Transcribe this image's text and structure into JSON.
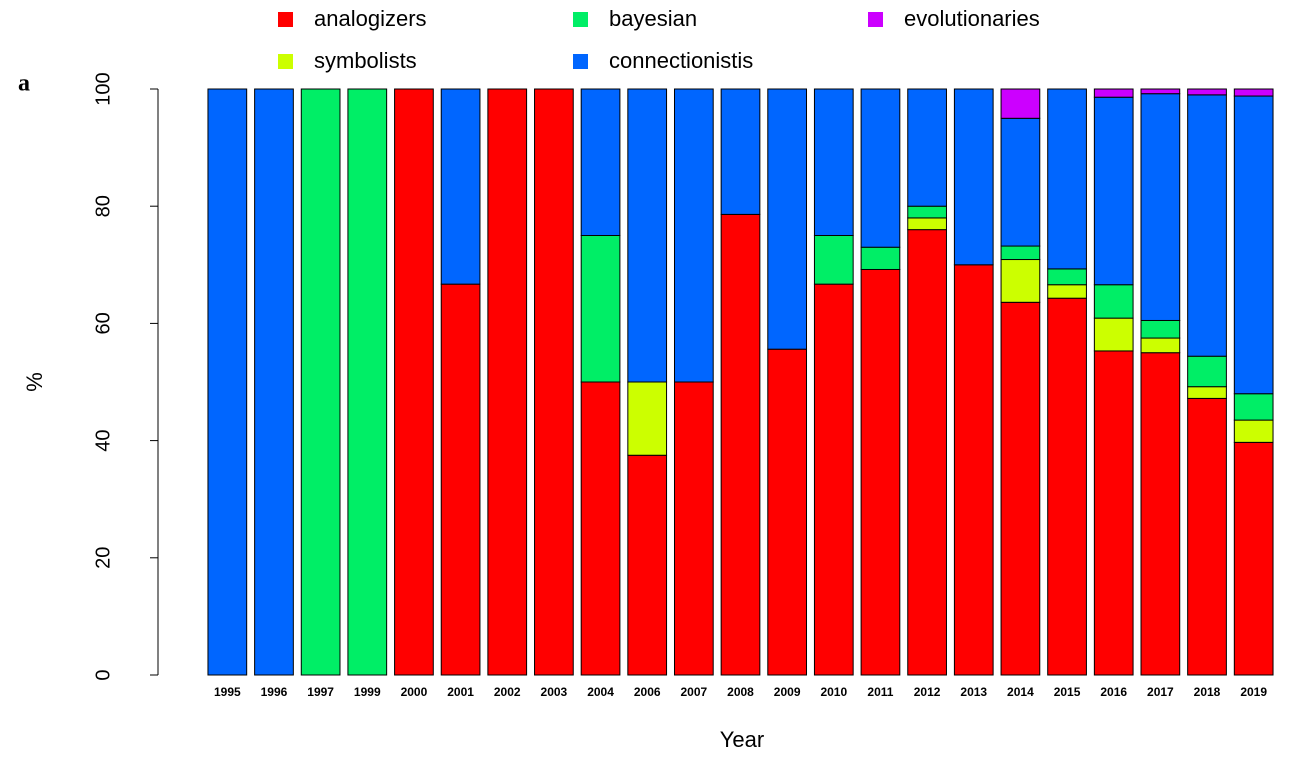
{
  "panel_label": "a",
  "chart_data": {
    "type": "stacked_bar",
    "x_label": "Year",
    "y_label": "%",
    "categories": [
      "1995",
      "1996",
      "1997",
      "1999",
      "2000",
      "2001",
      "2002",
      "2003",
      "2004",
      "2006",
      "2007",
      "2008",
      "2009",
      "2010",
      "2011",
      "2012",
      "2013",
      "2014",
      "2015",
      "2016",
      "2017",
      "2018",
      "2019"
    ],
    "series": [
      {
        "name": "analogizers",
        "color": "#ff0000",
        "values": [
          0,
          0,
          0,
          0,
          100,
          66.7,
          100,
          100,
          50,
          37.5,
          50,
          78.6,
          55.6,
          66.7,
          69.2,
          76,
          70,
          63.6,
          64.3,
          55.3,
          55,
          47.2,
          39.7
        ]
      },
      {
        "name": "symbolists",
        "color": "#ccff00",
        "values": [
          0,
          0,
          0,
          0,
          0,
          0,
          0,
          0,
          0,
          12.5,
          0,
          0,
          0,
          0,
          0,
          2,
          0,
          7.3,
          2.3,
          5.6,
          2.5,
          2,
          3.8
        ]
      },
      {
        "name": "bayesian",
        "color": "#00ee66",
        "values": [
          0,
          0,
          100,
          100,
          0,
          0,
          0,
          0,
          25,
          0,
          0,
          0,
          0,
          8.3,
          3.8,
          2,
          0,
          2.3,
          2.7,
          5.7,
          3,
          5.2,
          4.5
        ]
      },
      {
        "name": "connectionistis",
        "color": "#0066ff",
        "values": [
          100,
          100,
          0,
          0,
          0,
          33.3,
          0,
          0,
          25,
          50,
          50,
          21.4,
          44.4,
          25,
          27,
          20,
          30,
          21.8,
          30.7,
          32,
          38.7,
          44.6,
          50.8
        ]
      },
      {
        "name": "evolutionaries",
        "color": "#cc00ff",
        "values": [
          0,
          0,
          0,
          0,
          0,
          0,
          0,
          0,
          0,
          0,
          0,
          0,
          0,
          0,
          0,
          0,
          0,
          5,
          0,
          1.4,
          0.8,
          1,
          1.2
        ]
      }
    ],
    "ylim": [
      0,
      100
    ],
    "yticks": [
      0,
      20,
      40,
      60,
      80,
      100
    ],
    "grid": false
  }
}
